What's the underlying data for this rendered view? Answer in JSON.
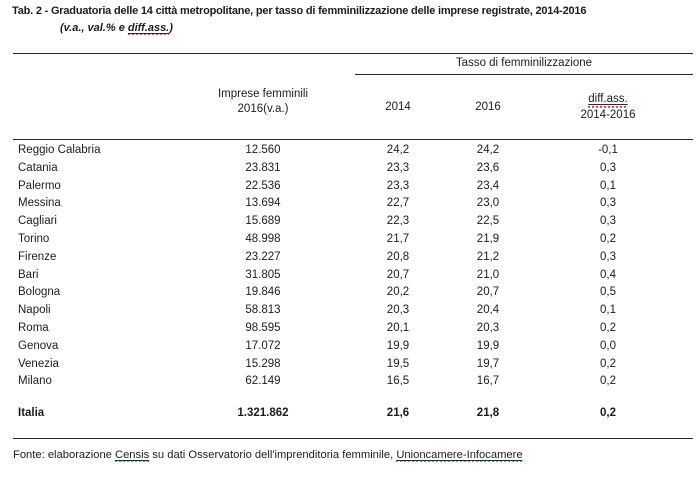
{
  "title": "Tab. 2 - Graduatoria delle 14 città metropolitane, per tasso di femminilizzazione delle imprese registrate, 2014-2016",
  "subtitle": {
    "pre": "(v.a., val.% e ",
    "spell": "diff.ass.",
    "post": ")"
  },
  "table": {
    "span_header": "Tasso di femminilizzazione",
    "col_imprese_line1": "Imprese femminili",
    "col_imprese_line2": "2016(v.a.)",
    "col_2014": "2014",
    "col_2016": "2016",
    "col_diff_line1": "diff.ass.",
    "col_diff_line2": "2014-2016",
    "rows": [
      {
        "city": "Reggio Calabria",
        "imprese": "12.560",
        "y2014": "24,2",
        "y2016": "24,2",
        "diff": "-0,1"
      },
      {
        "city": "Catania",
        "imprese": "23.831",
        "y2014": "23,3",
        "y2016": "23,6",
        "diff": "0,3"
      },
      {
        "city": "Palermo",
        "imprese": "22.536",
        "y2014": "23,3",
        "y2016": "23,4",
        "diff": "0,1"
      },
      {
        "city": "Messina",
        "imprese": "13.694",
        "y2014": "22,7",
        "y2016": "23,0",
        "diff": "0,3"
      },
      {
        "city": "Cagliari",
        "imprese": "15.689",
        "y2014": "22,3",
        "y2016": "22,5",
        "diff": "0,3"
      },
      {
        "city": "Torino",
        "imprese": "48.998",
        "y2014": "21,7",
        "y2016": "21,9",
        "diff": "0,2"
      },
      {
        "city": "Firenze",
        "imprese": "23.227",
        "y2014": "20,8",
        "y2016": "21,2",
        "diff": "0,3"
      },
      {
        "city": "Bari",
        "imprese": "31.805",
        "y2014": "20,7",
        "y2016": "21,0",
        "diff": "0,4"
      },
      {
        "city": "Bologna",
        "imprese": "19.846",
        "y2014": "20,2",
        "y2016": "20,7",
        "diff": "0,5"
      },
      {
        "city": "Napoli",
        "imprese": "58.813",
        "y2014": "20,3",
        "y2016": "20,4",
        "diff": "0,1"
      },
      {
        "city": "Roma",
        "imprese": "98.595",
        "y2014": "20,1",
        "y2016": "20,3",
        "diff": "0,2"
      },
      {
        "city": "Genova",
        "imprese": "17.072",
        "y2014": "19,9",
        "y2016": "19,9",
        "diff": "0,0"
      },
      {
        "city": "Venezia",
        "imprese": "15.298",
        "y2014": "19,5",
        "y2016": "19,7",
        "diff": "0,2"
      },
      {
        "city": "Milano",
        "imprese": "62.149",
        "y2014": "16,5",
        "y2016": "16,7",
        "diff": "0,2"
      }
    ],
    "total": {
      "city": "Italia",
      "imprese": "1.321.862",
      "y2014": "21,6",
      "y2016": "21,8",
      "diff": "0,2"
    }
  },
  "footer": {
    "pre": "Fonte: elaborazione ",
    "spell1": "Censis",
    "mid": " su dati Osservatorio dell'imprenditoria femminile, ",
    "spell2": "Unioncamere-Infocamere"
  }
}
